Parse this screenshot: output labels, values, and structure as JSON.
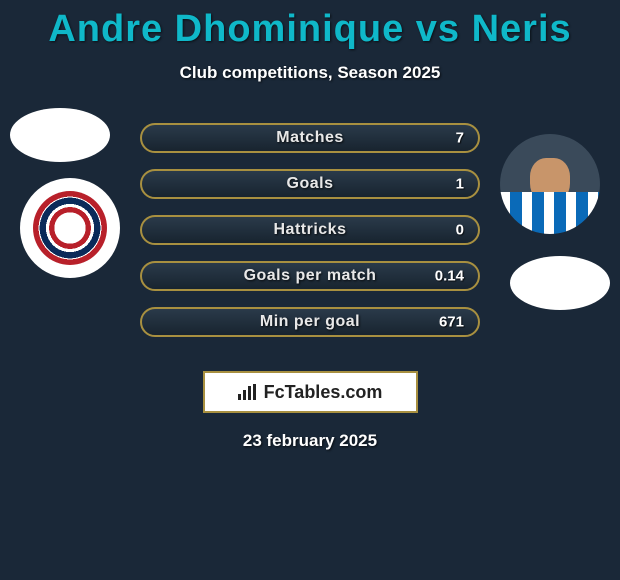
{
  "header": {
    "title": "Andre Dhominique vs Neris",
    "subtitle": "Club competitions, Season 2025",
    "title_color": "#0fb8c9"
  },
  "players": {
    "left": {
      "name": "Andre Dhominique"
    },
    "right": {
      "name": "Neris"
    }
  },
  "stats": {
    "row_border_color": "#a89040",
    "row_bg_top": "#2a3a4a",
    "row_bg_bottom": "#18242f",
    "rows": [
      {
        "label": "Matches",
        "left": "",
        "right": "7"
      },
      {
        "label": "Goals",
        "left": "",
        "right": "1"
      },
      {
        "label": "Hattricks",
        "left": "",
        "right": "0"
      },
      {
        "label": "Goals per match",
        "left": "",
        "right": "0.14"
      },
      {
        "label": "Min per goal",
        "left": "",
        "right": "671"
      }
    ]
  },
  "brand": {
    "text": "FcTables.com"
  },
  "footer": {
    "date": "23 february 2025"
  },
  "colors": {
    "page_bg": "#1a2838",
    "text": "#ffffff",
    "brand_box_bg": "#ffffff",
    "brand_box_border": "#a89040"
  }
}
